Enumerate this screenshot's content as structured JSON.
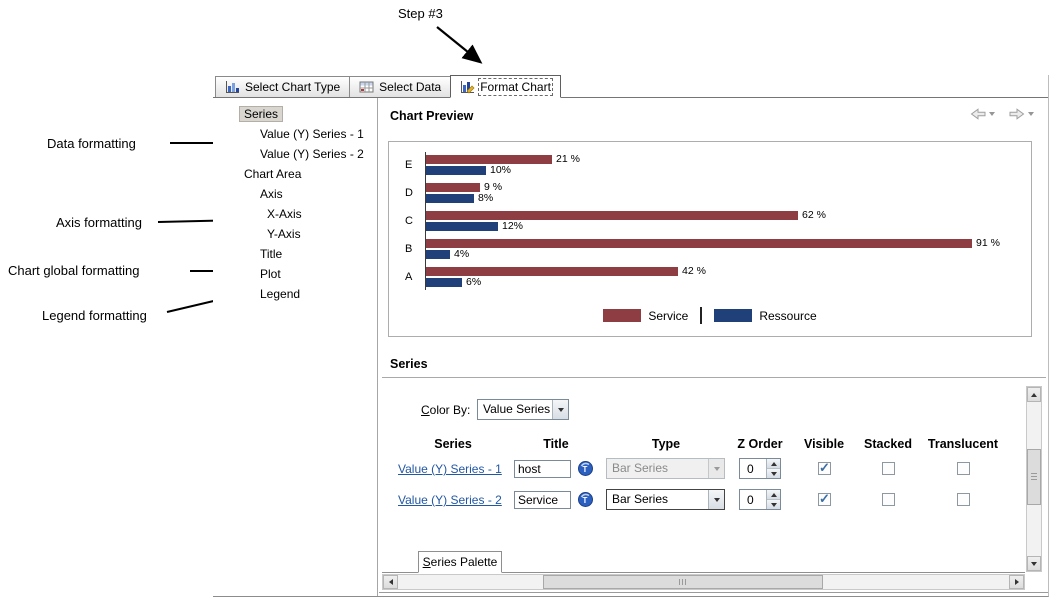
{
  "annotations": {
    "step_label": "Step #3",
    "left_labels": [
      "Data formatting",
      "Axis formatting",
      "Chart global formatting",
      "Legend formatting"
    ]
  },
  "tabs": [
    {
      "label": "Select Chart Type",
      "active": false
    },
    {
      "label": "Select Data",
      "active": false
    },
    {
      "label": "Format Chart",
      "active": true
    }
  ],
  "tree": {
    "items": [
      {
        "label": "Series",
        "level": 0,
        "selected": true
      },
      {
        "label": "Value (Y) Series - 1",
        "level": 1,
        "selected": false
      },
      {
        "label": "Value (Y) Series - 2",
        "level": 1,
        "selected": false
      },
      {
        "label": "Chart Area",
        "level": 0,
        "selected": false
      },
      {
        "label": "Axis",
        "level": 1,
        "selected": false
      },
      {
        "label": "X-Axis",
        "level": 2,
        "selected": false
      },
      {
        "label": "Y-Axis",
        "level": 2,
        "selected": false
      },
      {
        "label": "Title",
        "level": 1,
        "selected": false
      },
      {
        "label": "Plot",
        "level": 1,
        "selected": false
      },
      {
        "label": "Legend",
        "level": 1,
        "selected": false
      }
    ]
  },
  "preview": {
    "title": "Chart Preview"
  },
  "chart_data": {
    "type": "bar",
    "orientation": "horizontal",
    "categories": [
      "E",
      "D",
      "C",
      "B",
      "A"
    ],
    "series": [
      {
        "name": "Service",
        "color": "#8e3d42",
        "values": [
          21,
          9,
          62,
          91,
          42
        ],
        "labels": [
          "21 %",
          "9 %",
          "62 %",
          "91 %",
          "42 %"
        ]
      },
      {
        "name": "Ressource",
        "color": "#1f4079",
        "values": [
          10,
          8,
          12,
          4,
          6
        ],
        "labels": [
          "10%",
          "8%",
          "12%",
          "4%",
          "6%"
        ]
      }
    ],
    "xlim": [
      0,
      100
    ],
    "grid": false,
    "legend_position": "bottom"
  },
  "series_section": {
    "title": "Series",
    "color_by": {
      "label": "Color By:",
      "value": "Value Series"
    },
    "table": {
      "headers": [
        "Series",
        "Title",
        "Type",
        "Z Order",
        "Visible",
        "Stacked",
        "Translucent"
      ],
      "rows": [
        {
          "series_link": "Value (Y) Series - 1",
          "title_value": "host",
          "type_value": "Bar Series",
          "type_enabled": false,
          "z_order": "0",
          "visible": true,
          "stacked": false,
          "translucent": false
        },
        {
          "series_link": "Value (Y) Series - 2",
          "title_value": "Service",
          "type_value": "Bar Series",
          "type_enabled": true,
          "z_order": "0",
          "visible": true,
          "stacked": false,
          "translucent": false
        }
      ]
    },
    "palette_tab_label": "Series Palette"
  }
}
